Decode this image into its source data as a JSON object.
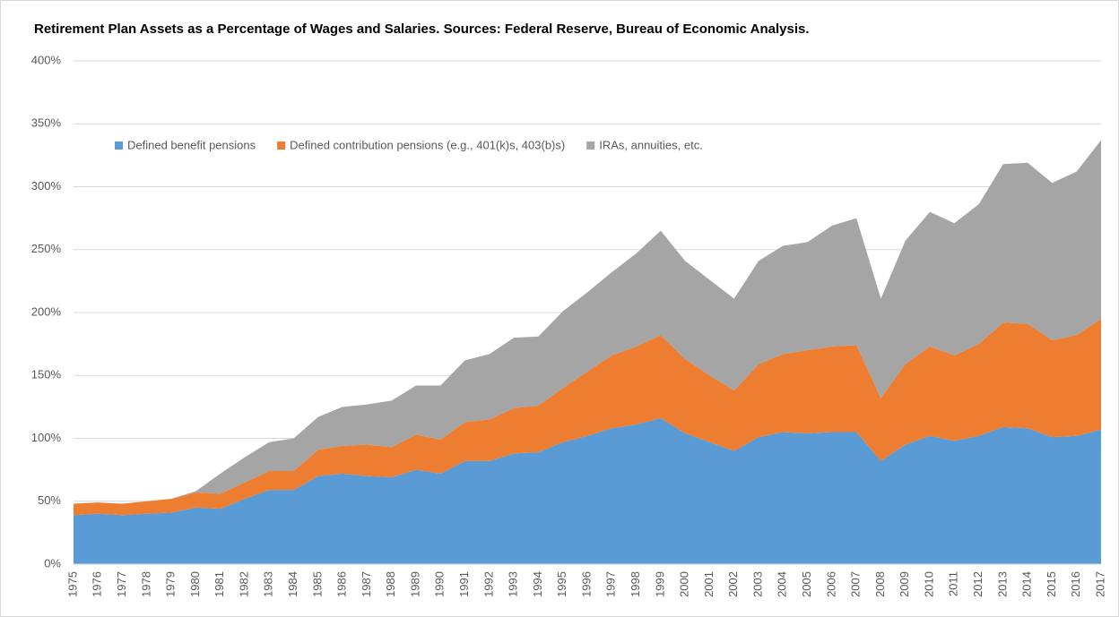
{
  "chart_data": {
    "type": "stacked_area",
    "title": "Retirement Plan Assets as a Percentage of Wages and Salaries. Sources: Federal Reserve, Bureau of Economic Analysis.",
    "categories": [
      "1975",
      "1976",
      "1977",
      "1978",
      "1979",
      "1980",
      "1981",
      "1982",
      "1983",
      "1984",
      "1985",
      "1986",
      "1987",
      "1988",
      "1989",
      "1990",
      "1991",
      "1992",
      "1993",
      "1994",
      "1995",
      "1996",
      "1997",
      "1998",
      "1999",
      "2000",
      "2001",
      "2002",
      "2003",
      "2004",
      "2005",
      "2006",
      "2007",
      "2008",
      "2009",
      "2010",
      "2011",
      "2012",
      "2013",
      "2014",
      "2015",
      "2016",
      "2017"
    ],
    "series": [
      {
        "name": "Defined benefit pensions",
        "color": "#5b9bd5",
        "values": [
          39,
          40,
          39,
          40,
          41,
          45,
          44,
          52,
          59,
          59,
          70,
          72,
          70,
          69,
          75,
          72,
          82,
          82,
          88,
          89,
          97,
          102,
          108,
          111,
          116,
          104,
          97,
          90,
          101,
          105,
          104,
          105,
          105,
          82,
          95,
          102,
          98,
          102,
          109,
          108,
          101,
          102,
          107
        ]
      },
      {
        "name": "Defined contribution pensions (e.g., 401(k)s, 403(b)s)",
        "color": "#ed7d31",
        "values": [
          9,
          9,
          9,
          10,
          11,
          12,
          12,
          13,
          15,
          15,
          21,
          22,
          25,
          24,
          28,
          27,
          31,
          33,
          36,
          37,
          43,
          51,
          58,
          62,
          66,
          59,
          53,
          48,
          58,
          62,
          66,
          68,
          69,
          50,
          64,
          71,
          68,
          73,
          83,
          83,
          77,
          80,
          88
        ]
      },
      {
        "name": "IRAs, annuities, etc.",
        "color": "#a5a5a5",
        "values": [
          0,
          0,
          0,
          0,
          0,
          1,
          16,
          20,
          23,
          26,
          26,
          31,
          32,
          37,
          39,
          43,
          49,
          52,
          56,
          55,
          61,
          63,
          66,
          74,
          83,
          78,
          76,
          73,
          82,
          86,
          86,
          96,
          101,
          79,
          98,
          107,
          105,
          111,
          126,
          128,
          125,
          130,
          142
        ]
      }
    ],
    "ylim": [
      0,
      400
    ],
    "yticks": [
      {
        "value": 0,
        "label": "0%"
      },
      {
        "value": 50,
        "label": "50%"
      },
      {
        "value": 100,
        "label": "100%"
      },
      {
        "value": 150,
        "label": "150%"
      },
      {
        "value": 200,
        "label": "200%"
      },
      {
        "value": 250,
        "label": "250%"
      },
      {
        "value": 300,
        "label": "300%"
      },
      {
        "value": 350,
        "label": "350%"
      },
      {
        "value": 400,
        "label": "400%"
      }
    ],
    "grid": true
  }
}
